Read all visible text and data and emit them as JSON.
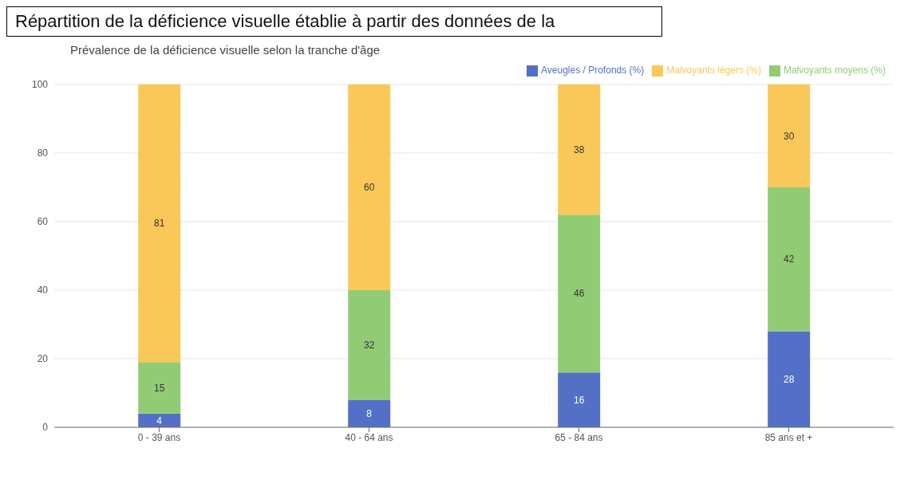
{
  "chart_data": {
    "type": "bar",
    "title": "Répartition de la déficience visuelle établie à partir des données de la",
    "subtitle": "Prévalence de la déficience visuelle selon la tranche d'âge",
    "categories": [
      "0 - 39 ans",
      "40 - 64 ans",
      "65 - 84 ans",
      "85 ans et +"
    ],
    "series": [
      {
        "name": "Aveugles / Profonds (%)",
        "color": "#5470c6",
        "values": [
          4,
          8,
          16,
          28
        ]
      },
      {
        "name": "Malvoyants moyens (%)",
        "color": "#91cc75",
        "values": [
          15,
          32,
          46,
          42
        ]
      },
      {
        "name": "Malvoyants légers (%)",
        "color": "#fac858",
        "values": [
          81,
          60,
          38,
          30
        ]
      }
    ],
    "stacked": true,
    "ylim": [
      0,
      100
    ],
    "yticks": [
      0,
      20,
      40,
      60,
      80,
      100
    ],
    "grid": "y",
    "legend": "top right",
    "data_labels": true
  }
}
